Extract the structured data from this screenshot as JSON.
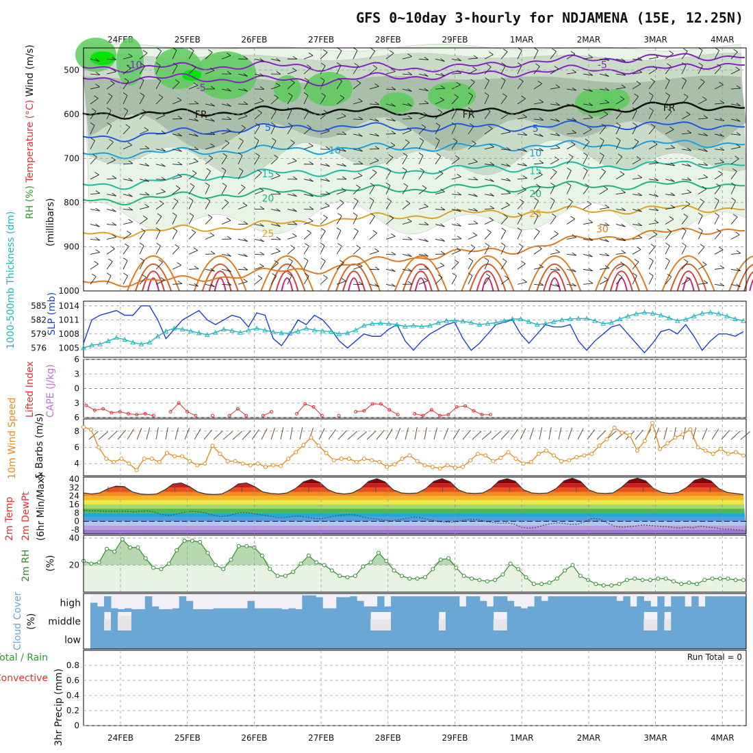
{
  "title": "GFS 0~10day 3-hourly for NDJAMENA (15E, 12.25N)",
  "colors": {
    "rh_light": "#e8f4e6",
    "rh_mid": "#c9dcc8",
    "rh_dark": "#a9bfa9",
    "rh_green": "#5ccb5c",
    "rh_bright": "#00e600",
    "slp": "#1a3fd6",
    "thickness": "#22b5c2",
    "wind": "#e58a1f",
    "barb": "#6b4a32",
    "li": "#e03030",
    "cape": "#c070d0",
    "rh2m": "#2c8f2c",
    "cloud": "#6aa7d4",
    "cloud_bg": "#f3eff7",
    "precip_total": "#2a9d2a",
    "precip_conv": "#e03030",
    "grid": "#9a9a9a"
  },
  "chart_data": [
    {
      "id": "upper_air",
      "type": "contour",
      "y_axis": {
        "label": "(millibars)",
        "ticks": [
          500,
          600,
          700,
          800,
          900,
          1000
        ],
        "range": [
          450,
          1000
        ]
      },
      "left_labels": [
        "Wind (m/s)",
        "Temperature (°C)",
        "RH (%)"
      ],
      "dates": [
        "24FEB",
        "25FEB",
        "26FEB",
        "27FEB",
        "28FEB",
        "29FEB",
        "1MAR",
        "2MAR",
        "3MAR",
        "4MAR"
      ],
      "isotherms": [
        {
          "temp": -10,
          "color": "#8a1fc8",
          "pressures": [
            495,
            493,
            490,
            492,
            494,
            496,
            482,
            475,
            472,
            468
          ]
        },
        {
          "temp": -5,
          "color": "#8a1fc8",
          "pressures": [
            520,
            518,
            522,
            525,
            515,
            512,
            505,
            498,
            500,
            485
          ]
        },
        {
          "temp": 0,
          "color": "#111111",
          "pressures": [
            600,
            598,
            592,
            590,
            595,
            598,
            588,
            592,
            580,
            582
          ]
        },
        {
          "temp": 5,
          "color": "#1e5ae0",
          "pressures": [
            652,
            640,
            632,
            628,
            630,
            630,
            628,
            625,
            625,
            625
          ]
        },
        {
          "temp": 10,
          "color": "#1aa0e0",
          "pressures": [
            690,
            685,
            680,
            680,
            675,
            675,
            672,
            670,
            668,
            665
          ]
        },
        {
          "temp": 15,
          "color": "#1abba6",
          "pressures": [
            760,
            745,
            735,
            730,
            728,
            725,
            720,
            718,
            715,
            712
          ]
        },
        {
          "temp": 20,
          "color": "#1ab57a",
          "pressures": [
            795,
            785,
            778,
            775,
            770,
            768,
            765,
            762,
            760,
            758
          ]
        },
        {
          "temp": 25,
          "color": "#e0a020",
          "pressures": [
            870,
            860,
            852,
            842,
            832,
            825,
            822,
            818,
            815,
            812
          ]
        },
        {
          "temp": 30,
          "color": "#e07a1a",
          "pressures": [
            980,
            975,
            960,
            950,
            930,
            915,
            905,
            880,
            870,
            860
          ]
        }
      ],
      "labels": [
        {
          "text": "-10",
          "date": "24FEB",
          "p": 488
        },
        {
          "text": "-5",
          "date": "25FEB",
          "p": 540
        },
        {
          "text": "-5",
          "date": "2MAR",
          "p": 488
        },
        {
          "text": "FR",
          "date": "25FEB",
          "p": 600
        },
        {
          "text": "FR",
          "date": "29FEB",
          "p": 600
        },
        {
          "text": "FR",
          "date": "3MAR",
          "p": 585
        },
        {
          "text": "5",
          "date": "26FEB",
          "p": 630
        },
        {
          "text": "5",
          "date": "1MAR",
          "p": 632
        },
        {
          "text": "10",
          "date": "27FEB",
          "p": 682
        },
        {
          "text": "10",
          "date": "1MAR",
          "p": 688
        },
        {
          "text": "15",
          "date": "26FEB",
          "p": 735
        },
        {
          "text": "15",
          "date": "1MAR",
          "p": 728
        },
        {
          "text": "20",
          "date": "26FEB",
          "p": 790
        },
        {
          "text": "20",
          "date": "1MAR",
          "p": 780
        },
        {
          "text": "25",
          "date": "26FEB",
          "p": 870
        },
        {
          "text": "25",
          "date": "1MAR",
          "p": 825
        },
        {
          "text": "30",
          "date": "2MAR",
          "p": 860
        }
      ]
    },
    {
      "id": "slp_thickness",
      "type": "line",
      "ylabel_left": "1000-500mb Thickness (dm)",
      "ylabel_right": "SLP (mb)",
      "left_ticks": [
        576,
        579,
        582,
        585
      ],
      "right_ticks": [
        1005,
        1008,
        1011,
        1014
      ],
      "slp_range": [
        1003,
        1015
      ],
      "slp": [
        1006,
        1011,
        1012,
        1012.5,
        1013,
        1012,
        1012,
        1014,
        1014,
        1011,
        1007,
        1009,
        1011,
        1012,
        1013,
        1011,
        1010,
        1011,
        1012,
        1011.5,
        1009.5,
        1012.5,
        1012,
        1007,
        1005.5,
        1008,
        1011,
        1010,
        1012,
        1011,
        1009,
        1006.5,
        1005,
        1006.5,
        1008,
        1007.5,
        1007.5,
        1009,
        1010,
        1006.5,
        1004.5,
        1006.5,
        1008,
        1009,
        1010,
        1010.5,
        1007,
        1004.5,
        1006,
        1008,
        1010,
        1010.5,
        1011,
        1008,
        1006,
        1008,
        1010,
        1009.5,
        1009.5,
        1010,
        1006.5,
        1004.5,
        1006.5,
        1008,
        1009.5,
        1010,
        1008,
        1006,
        1004,
        1006,
        1008.5,
        1009,
        1008,
        1010,
        1007.5,
        1004.5,
        1006.5,
        1008,
        1008,
        1007.5,
        1008.5
      ],
      "thickness": [
        576.0,
        576.6,
        576.8,
        577.5,
        578.2,
        577.8,
        577.2,
        576.8,
        577.2,
        578.5,
        579.6,
        580.2,
        580.0,
        579.6,
        579.2,
        578.8,
        579.3,
        580.0,
        579.7,
        579.3,
        579.8,
        580.2,
        579.8,
        579.4,
        579.2,
        579.1,
        579.6,
        580.2,
        579.8,
        579.6,
        579.5,
        579.0,
        579.2,
        579.8,
        580.8,
        581.2,
        581.3,
        581.2,
        581.0,
        580.6,
        580.8,
        580.6,
        580.8,
        581.4,
        581.8,
        581.8,
        581.7,
        581.4,
        581.0,
        581.2,
        581.4,
        581.8,
        582.2,
        582.2,
        581.6,
        581.0,
        581.2,
        581.6,
        582.0,
        582.2,
        582.3,
        582.3,
        581.8,
        581.2,
        581.4,
        582.2,
        582.8,
        583.3,
        583.6,
        583.4,
        583.0,
        582.4,
        581.8,
        582.1,
        582.8,
        583.4,
        583.6,
        583.3,
        582.8,
        582.2,
        581.8
      ]
    },
    {
      "id": "lifted_cape",
      "type": "line",
      "ylabel": [
        "Lifted Index",
        "CAPE (J/kg)"
      ],
      "ticks": [
        -6,
        -3,
        0,
        3,
        6
      ],
      "li": [
        3.5,
        4.5,
        4.2,
        5,
        4.8,
        5.2,
        5.4,
        5.2,
        5.6,
        5.8,
        4.8,
        3.0,
        4.8,
        5.6,
        5.8,
        5.6,
        5.9,
        5.6,
        4.2,
        5.6,
        5.8,
        5.6,
        4.8,
        5.7,
        5.8,
        5.2,
        3.2,
        3.8,
        5.6,
        5.8,
        5.6,
        5.8,
        4.8,
        4.6,
        3.2,
        3.2,
        4.4,
        5.4,
        5.8,
        5.2,
        5.6,
        4.4,
        5.6,
        5.4,
        3.8,
        3.6,
        4.6,
        5.4,
        5.4
      ],
      "li_count": 49
    },
    {
      "id": "wind10m",
      "type": "line",
      "ylabel": [
        "10m Wind Speed",
        "& Barbs (m/s)"
      ],
      "ticks": [
        4,
        6,
        8
      ],
      "range": [
        2.5,
        9.5
      ],
      "values": [
        8.5,
        8.2,
        6.0,
        4.6,
        4.2,
        4.6,
        4.0,
        3.2,
        4.6,
        4.6,
        4.2,
        5.3,
        4.9,
        4.9,
        4.3,
        3.8,
        4.0,
        6.2,
        5.2,
        4.3,
        4.3,
        4.0,
        3.8,
        4.0,
        3.6,
        3.8,
        3.7,
        4.6,
        5.4,
        6.3,
        7.2,
        6.2,
        5.3,
        4.4,
        4.6,
        4.6,
        4.2,
        4.6,
        4.4,
        4.2,
        3.6,
        3.9,
        4.6,
        5.0,
        4.3,
        3.8,
        3.6,
        3.4,
        3.8,
        3.5,
        3.6,
        4.4,
        5.2,
        5.0,
        4.3,
        4.7,
        5.4,
        4.6,
        4.0,
        4.2,
        5.2,
        5.6,
        5.0,
        4.3,
        4.4,
        4.8,
        5.0,
        5.2,
        6.2,
        7.0,
        8.4,
        7.8,
        7.5,
        5.6,
        6.8,
        9.0,
        5.8,
        6.5,
        7.2,
        7.6,
        8.2,
        6.0,
        5.6,
        5.2,
        5.8,
        5.2,
        5.4,
        5.0
      ]
    },
    {
      "id": "temp2m",
      "type": "area",
      "ylabel": [
        "2m Temp",
        "2m DewPt",
        "(6hr Min/Max)"
      ],
      "ticks": [
        40,
        32,
        24,
        16,
        8,
        0,
        -8
      ],
      "range": [
        -12,
        42
      ],
      "temp": [
        27,
        26,
        27,
        31,
        33.5,
        33,
        28,
        26,
        25.5,
        26,
        30,
        35.5,
        36.5,
        33,
        28,
        26,
        25.5,
        26,
        30,
        35.5,
        36.5,
        33,
        28,
        26.5,
        26,
        27,
        31,
        37.5,
        40,
        37,
        30,
        27,
        26,
        27,
        31,
        38,
        40.5,
        37.5,
        30,
        27,
        26.5,
        27,
        31,
        38,
        40.5,
        37.5,
        30,
        27,
        26.5,
        27,
        31,
        38.5,
        40.5,
        38,
        30,
        27,
        26.5,
        27,
        31,
        38.5,
        41,
        38,
        30,
        27,
        26.5,
        27,
        32,
        39,
        41,
        38.5,
        31,
        27.5,
        26.5,
        27.5,
        32,
        39,
        41,
        38.5,
        31,
        27.5,
        26.5,
        25.5
      ],
      "dewpt": [
        10.5,
        10,
        10,
        9.5,
        9.5,
        9.5,
        9.5,
        9,
        9.5,
        10,
        8.5,
        6.5,
        5.5,
        7,
        8.5,
        9.5,
        9,
        8,
        6,
        4.5,
        5,
        7,
        8.5,
        8,
        7,
        6,
        5,
        3.5,
        3.5,
        4.5,
        5,
        4,
        3,
        2.5,
        3.5,
        5,
        6,
        6.5,
        6,
        4,
        3,
        2,
        1,
        0.5,
        1.5,
        3,
        4,
        3.5,
        2,
        0.5,
        -0.5,
        -1,
        -0.5,
        1,
        2,
        1.5,
        0,
        -1,
        -2,
        -1.5,
        -2.5,
        -5.5,
        -6.5,
        -6,
        -4,
        -2.5,
        -1.5,
        -2,
        -3,
        -2.5,
        0,
        3,
        2,
        -1.5,
        -4.5,
        -5.5,
        -5,
        -4.5,
        -3.5,
        -4,
        -4.5,
        -5,
        -5.5,
        -6.5,
        -5.5,
        -6,
        -4.5,
        -5.5,
        -6,
        -7.5,
        -7.5,
        -8,
        -8.5
      ]
    },
    {
      "id": "rh2m",
      "type": "area",
      "ylabel": [
        "2m RH",
        "(%)"
      ],
      "ticks": [
        20,
        40
      ],
      "range": [
        0,
        42
      ],
      "values": [
        23,
        21,
        22,
        32,
        30,
        39,
        33,
        33,
        25,
        18,
        17,
        21,
        31,
        38,
        38,
        37,
        29,
        20,
        17,
        24,
        34,
        34,
        33,
        27,
        17,
        12,
        12,
        15,
        21,
        27,
        22,
        20,
        16,
        12,
        11,
        12,
        19,
        22,
        29,
        23,
        16,
        12,
        10,
        10,
        11,
        17,
        24,
        25,
        18,
        12,
        10,
        9,
        8,
        9,
        13,
        21,
        17,
        11,
        6,
        6,
        7,
        10,
        16,
        20,
        12,
        9,
        6,
        5,
        5,
        6,
        9,
        10,
        9,
        9,
        10,
        10,
        8,
        6,
        7,
        6,
        9,
        10,
        10,
        10,
        9,
        9
      ]
    },
    {
      "id": "cloud_cover",
      "type": "bars",
      "ylabel": [
        "Cloud Cover",
        "(%)"
      ],
      "layers": [
        "high",
        "middle",
        "low"
      ],
      "high": [
        50,
        30,
        85,
        20,
        15,
        20,
        15,
        15,
        85,
        30,
        15,
        15,
        20,
        85,
        60,
        15,
        15,
        15,
        20,
        20,
        20,
        20,
        20,
        60,
        20,
        20,
        20,
        20,
        15,
        20,
        15,
        90,
        90,
        80,
        20,
        20,
        80,
        80,
        85,
        60,
        30,
        30,
        85,
        30,
        85,
        85,
        85,
        85,
        85,
        85,
        85,
        85,
        85,
        85,
        30,
        85,
        85,
        60,
        30,
        85,
        85,
        60,
        30,
        20,
        30,
        85,
        60,
        85,
        85,
        85,
        85,
        85,
        85,
        85,
        85,
        85,
        85,
        60,
        85,
        30,
        85,
        60,
        30,
        85,
        30,
        85,
        85,
        30,
        85,
        30,
        85,
        85,
        85,
        85,
        85,
        85
      ],
      "middle": [
        20,
        20,
        60,
        20,
        80,
        80,
        20,
        20,
        20,
        20,
        20,
        20,
        20,
        20,
        20,
        20,
        20,
        20,
        20,
        20,
        20,
        20,
        20,
        20,
        20,
        20,
        20,
        20,
        20,
        20,
        20,
        20,
        20,
        20,
        20,
        20,
        20,
        20,
        20,
        20,
        20,
        60,
        60,
        60,
        20,
        20,
        20,
        20,
        20,
        20,
        20,
        60,
        20,
        20,
        20,
        20,
        20,
        20,
        20,
        60,
        60,
        20,
        20,
        20,
        20,
        20,
        20,
        20,
        20,
        20,
        20,
        20,
        20,
        20,
        20,
        20,
        20,
        20,
        20,
        20,
        20,
        60,
        60,
        20,
        60,
        20,
        20,
        20,
        20,
        20,
        20,
        20,
        20,
        20,
        20,
        20
      ],
      "low": 100
    },
    {
      "id": "precip",
      "type": "bar",
      "ylabel": [
        "Total / Rain",
        "Convective",
        "3hr Precip (mm)"
      ],
      "ticks": [
        0,
        0.2,
        0.4,
        0.6,
        0.8
      ],
      "range": [
        0,
        1.0
      ],
      "run_total": "Run Total = 0",
      "values": []
    }
  ]
}
